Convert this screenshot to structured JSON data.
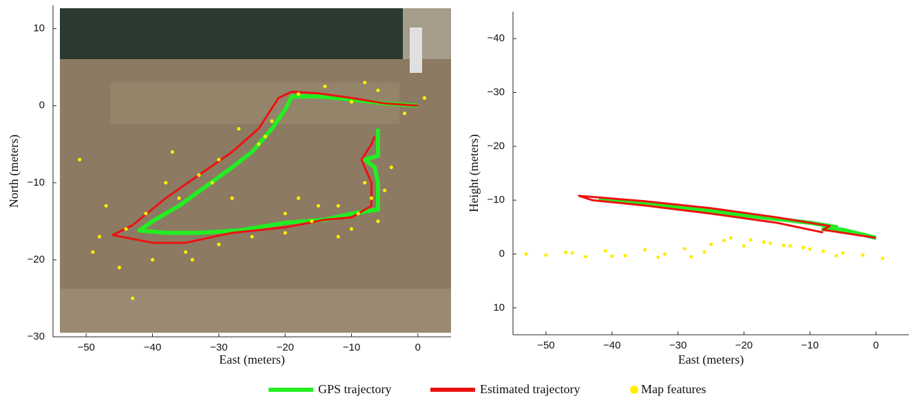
{
  "chart_data": [
    {
      "type": "line",
      "xlabel": "East (meters)",
      "ylabel": "North (meters)",
      "xlim": [
        -55,
        5
      ],
      "ylim": [
        -30,
        13
      ],
      "xticks": [
        {
          "value": -50,
          "label": "−50"
        },
        {
          "value": -40,
          "label": "−40"
        },
        {
          "value": -30,
          "label": "−30"
        },
        {
          "value": -20,
          "label": "−20"
        },
        {
          "value": -10,
          "label": "−10"
        },
        0
      ],
      "yticks": [
        {
          "value": -30,
          "label": "−30"
        },
        {
          "value": -20,
          "label": "−20"
        },
        {
          "value": -10,
          "label": "−10"
        },
        0,
        10
      ],
      "series": [
        {
          "name": "GPS trajectory",
          "color": "#22ee22",
          "mode": "line",
          "x": [
            0,
            -5,
            -10,
            -15,
            -19,
            -20,
            -22,
            -25,
            -28,
            -32,
            -36,
            -40,
            -42,
            -38,
            -33,
            -27,
            -20,
            -14,
            -10,
            -6,
            -6,
            -6.5,
            -8,
            -6,
            -6
          ],
          "values": [
            0,
            0.3,
            0.8,
            1.2,
            1.2,
            -0.5,
            -3,
            -6,
            -8,
            -10.5,
            -13,
            -15,
            -16.2,
            -16.5,
            -16.5,
            -16.2,
            -15.2,
            -14.8,
            -14,
            -13.5,
            -10,
            -8,
            -7,
            -6.5,
            -3
          ]
        },
        {
          "name": "Estimated trajectory",
          "color": "#ee1111",
          "mode": "line",
          "x": [
            0,
            -5,
            -10,
            -15,
            -19,
            -21,
            -24,
            -28,
            -33,
            -38,
            -43,
            -46,
            -40,
            -35,
            -28,
            -20,
            -14,
            -10,
            -7,
            -7,
            -8.5,
            -7,
            -6.5
          ],
          "values": [
            0,
            0.3,
            1,
            1.6,
            1.8,
            1,
            -3,
            -6,
            -9,
            -12,
            -15.5,
            -16.8,
            -17.8,
            -17.8,
            -16.5,
            -15.8,
            -14.8,
            -14.5,
            -13,
            -10,
            -7,
            -5,
            -4
          ]
        },
        {
          "name": "Map features",
          "color": "#ffee00",
          "mode": "markers",
          "x": [
            1,
            -2,
            -6,
            -10,
            -14,
            -18,
            -22,
            -4,
            -8,
            -12,
            -16,
            -20,
            -24,
            -27,
            -30,
            -33,
            -36,
            -38,
            -41,
            -44,
            -47,
            -49,
            -51,
            -45,
            -40,
            -35,
            -30,
            -25,
            -20,
            -15,
            -10,
            -6,
            -5,
            -7,
            -9,
            -12,
            -18,
            -28,
            -34,
            -43,
            -48,
            -37,
            -31,
            -23,
            -8
          ],
          "values": [
            1,
            -1,
            2,
            0.5,
            2.5,
            1.5,
            -2,
            -8,
            -10,
            -13,
            -15,
            -14,
            -5,
            -3,
            -7,
            -9,
            -12,
            -10,
            -14,
            -16,
            -13,
            -19,
            -7,
            -21,
            -20,
            -19,
            -18,
            -17,
            -16.5,
            -13,
            -16,
            -15,
            -11,
            -12,
            -14,
            -17,
            -12,
            -12,
            -20,
            -25,
            -17,
            -6,
            -10,
            -4,
            3
          ]
        }
      ]
    },
    {
      "type": "line",
      "xlabel": "East (meters)",
      "ylabel": "Height (meters)",
      "xlim": [
        -55,
        5
      ],
      "ylim": [
        15,
        -45
      ],
      "xticks": [
        {
          "value": -50,
          "label": "−50"
        },
        {
          "value": -40,
          "label": "−40"
        },
        {
          "value": -30,
          "label": "−30"
        },
        {
          "value": -20,
          "label": "−20"
        },
        {
          "value": -10,
          "label": "−10"
        },
        0
      ],
      "yticks": [
        {
          "value": -40,
          "label": "−40"
        },
        {
          "value": -30,
          "label": "−30"
        },
        {
          "value": -20,
          "label": "−20"
        },
        {
          "value": -10,
          "label": "−10"
        },
        0,
        10
      ],
      "series": [
        {
          "color": "#22ee22",
          "mode": "line",
          "x": [
            0,
            -5,
            -8,
            -6,
            -10,
            -20,
            -30,
            -38,
            -42
          ],
          "values": [
            -3,
            -4.5,
            -4.6,
            -5,
            -5.8,
            -7.2,
            -8.8,
            -9.8,
            -10.3
          ]
        },
        {
          "color": "#ee1111",
          "mode": "line",
          "x": [
            0,
            -8,
            -7,
            -15,
            -25,
            -35,
            -45,
            -43,
            -35,
            -25,
            -15,
            -8
          ],
          "values": [
            -3,
            -4.5,
            -5.2,
            -6.8,
            -8.5,
            -9.8,
            -10.8,
            -10,
            -9,
            -7.5,
            -5.8,
            -4
          ]
        },
        {
          "color": "#ffee00",
          "mode": "markers",
          "x": [
            -53,
            -50,
            -47,
            -44,
            -41,
            -38,
            -35,
            -32,
            -29,
            -26,
            -23,
            -20,
            -17,
            -14,
            -11,
            -8,
            -5,
            -2,
            1,
            -22,
            -19,
            -16,
            -13,
            -10,
            -25,
            -28,
            -33,
            -40,
            -46,
            -6
          ],
          "values": [
            0,
            0.2,
            -0.3,
            0.5,
            -0.6,
            0.3,
            -0.8,
            0,
            -1,
            -0.4,
            -2.5,
            -1.5,
            -2.2,
            -1.6,
            -1.2,
            -0.5,
            -0.2,
            0.2,
            0.8,
            -3,
            -2.6,
            -2,
            -1.5,
            -0.9,
            -1.8,
            0.5,
            0.6,
            0.4,
            -0.2,
            0.3
          ]
        }
      ]
    }
  ]
}
